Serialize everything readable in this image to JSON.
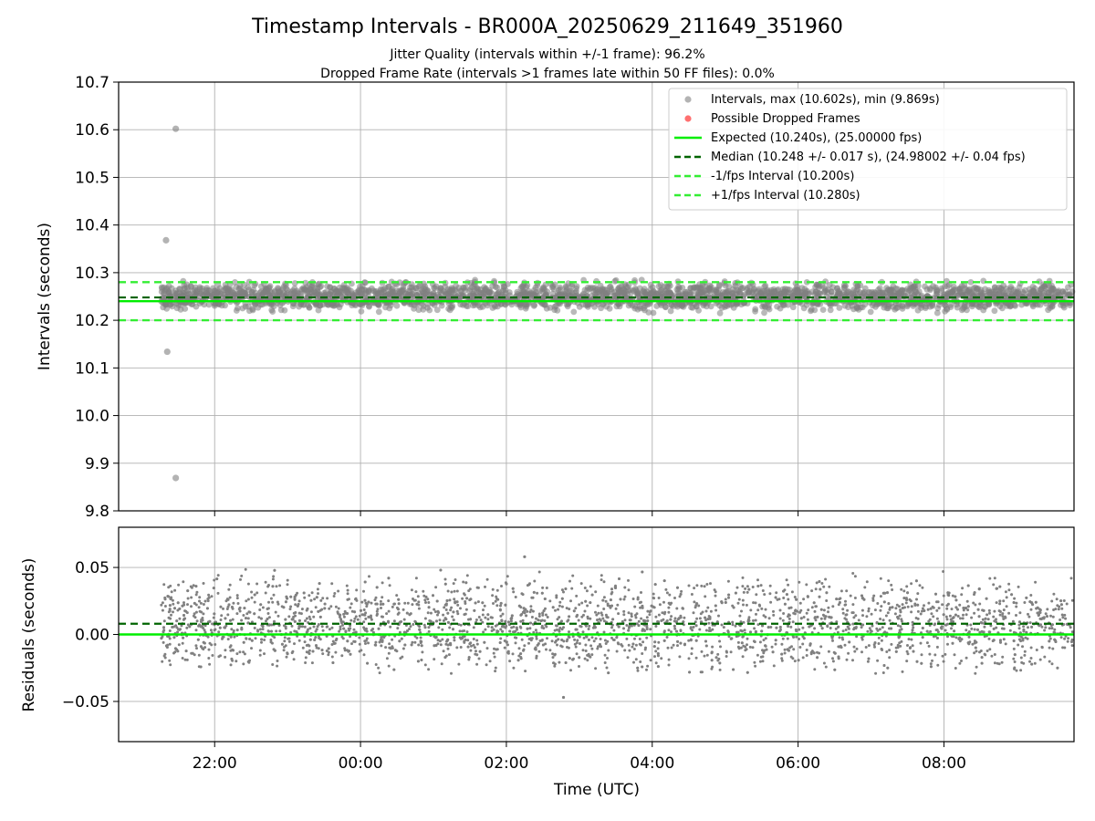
{
  "chart_data": [
    {
      "type": "scatter",
      "title": "Timestamp Intervals - BR000A_20250629_211649_351960",
      "subtitle_lines": [
        "Jitter Quality (intervals within +/-1 frame): 96.2%",
        "Dropped Frame Rate (intervals >1 frames late within 50 FF files): 0.0%"
      ],
      "xlabel": "",
      "ylabel": "Intervals (seconds)",
      "ylim": [
        9.8,
        10.7
      ],
      "yticks": [
        9.8,
        9.9,
        10.0,
        10.1,
        10.2,
        10.3,
        10.4,
        10.5,
        10.6,
        10.7
      ],
      "ytick_labels": [
        "9.8",
        "9.9",
        "10.0",
        "10.1",
        "10.2",
        "10.3",
        "10.4",
        "10.5",
        "10.6",
        "10.7"
      ],
      "grid": true,
      "legend_position": "top-right",
      "legend": [
        "Intervals, max (10.602s), min (9.869s)",
        "Possible Dropped Frames",
        "Expected (10.240s), (25.00000 fps)",
        "Median (10.248 +/- 0.017 s), (24.98002 +/- 0.04 fps)",
        "-1/fps Interval (10.200s)",
        "+1/fps Interval (10.280s)"
      ],
      "reference_lines": {
        "expected": 10.24,
        "median": 10.248,
        "minus_one_fps": 10.2,
        "plus_one_fps": 10.28
      },
      "series": [
        {
          "name": "Intervals, max (10.602s), min (9.869s)",
          "max": 10.602,
          "min": 9.869,
          "time_range_utc": [
            "2025-06-29 21:16",
            "2025-06-30 09:46"
          ],
          "typical_range": [
            10.21,
            10.29
          ],
          "outliers": [
            {
              "x": "2025-06-29 21:20",
              "y": 10.368
            },
            {
              "x": "2025-06-29 21:21",
              "y": 10.134
            },
            {
              "x": "2025-06-29 21:28",
              "y": 10.602
            },
            {
              "x": "2025-06-29 21:28",
              "y": 9.869
            }
          ]
        },
        {
          "name": "Possible Dropped Frames",
          "points": []
        }
      ]
    },
    {
      "type": "scatter",
      "xlabel": "Time (UTC)",
      "ylabel": "Residuals (seconds)",
      "ylim": [
        -0.08,
        0.08
      ],
      "yticks": [
        -0.05,
        0.0,
        0.05
      ],
      "ytick_labels": [
        "−0.05",
        "0.00",
        "0.05"
      ],
      "xlim": [
        "2025-06-29 20:41",
        "2025-06-30 09:47"
      ],
      "xticks": [
        "2025-06-29 22:00",
        "2025-06-30 00:00",
        "2025-06-30 02:00",
        "2025-06-30 04:00",
        "2025-06-30 06:00",
        "2025-06-30 08:00"
      ],
      "xtick_labels": [
        "22:00",
        "00:00",
        "02:00",
        "04:00",
        "06:00",
        "08:00"
      ],
      "grid": true,
      "reference_lines": {
        "zero": 0.0,
        "median_offset": 0.008
      },
      "series": [
        {
          "name": "Residuals",
          "typical_range": [
            -0.03,
            0.045
          ],
          "extremes": [
            {
              "x": "2025-06-30 02:15",
              "y": 0.058
            },
            {
              "x": "2025-06-30 02:47",
              "y": -0.047
            }
          ]
        }
      ]
    }
  ],
  "colors": {
    "intervals": "#808080",
    "dropped": "#ff3333",
    "expected": "#00ee00",
    "median": "#006400",
    "fps_bounds": "#33ee33",
    "grid": "#b0b0b0"
  }
}
